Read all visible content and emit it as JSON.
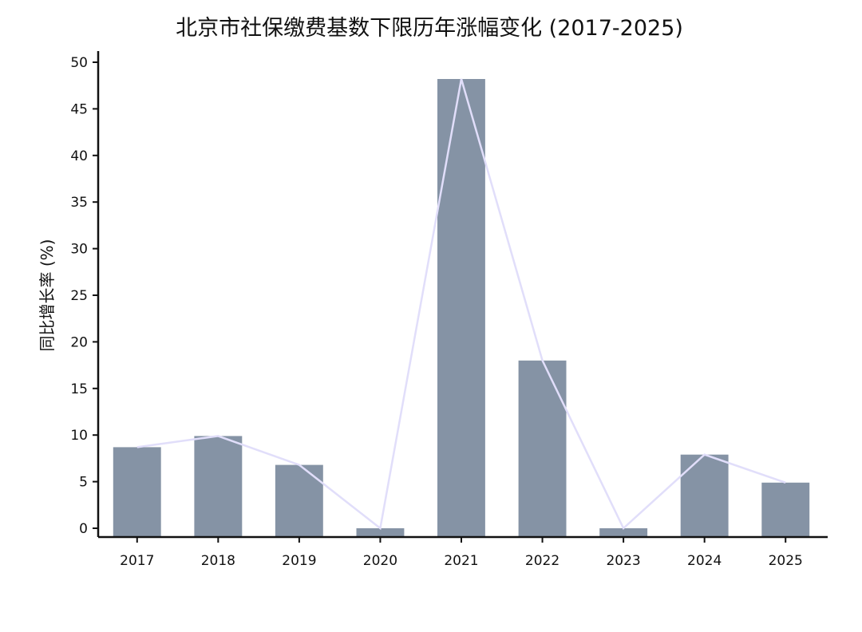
{
  "chart_data": {
    "type": "bar",
    "title": "北京市社保缴费基数下限历年涨幅变化 (2017-2025)",
    "xlabel": "",
    "ylabel": "同比增长率 (%)",
    "categories": [
      "2017",
      "2018",
      "2019",
      "2020",
      "2021",
      "2022",
      "2023",
      "2024",
      "2025"
    ],
    "values": [
      8.7,
      9.9,
      6.8,
      0.0,
      48.2,
      18.0,
      0.0,
      7.9,
      4.9
    ],
    "ylim": [
      -1,
      50
    ],
    "yticks": [
      0,
      5,
      10,
      15,
      20,
      25,
      30,
      35,
      40,
      45,
      50
    ],
    "overlay": "line",
    "grid": false,
    "legend": "none",
    "colors": {
      "bar": "#8593a5",
      "line": "#e1defa",
      "axis": "#111111"
    }
  }
}
